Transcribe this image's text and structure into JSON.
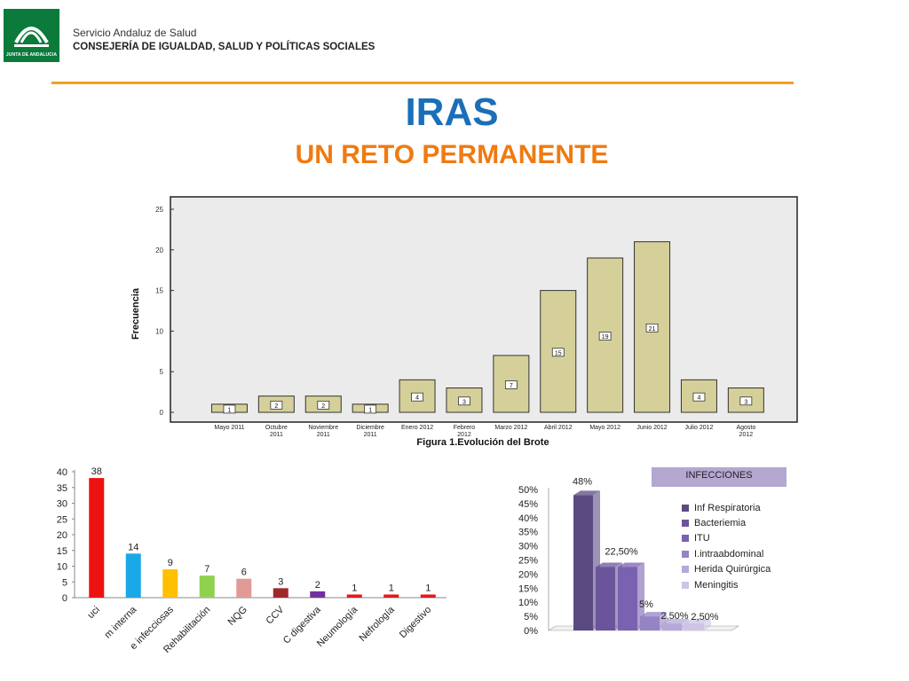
{
  "header": {
    "logo_text": "JUNTA DE ANDALUCIA",
    "org_line1": "Servicio Andaluz de Salud",
    "org_line2": "CONSEJERÍA DE IGUALDAD, SALUD Y POLÍTICAS SOCIALES",
    "title": "IRAS",
    "subtitle": "UN RETO PERMANENTE"
  },
  "colors": {
    "accent_rule": "#f0a020",
    "title": "#1a6fb8",
    "subtitle": "#f07a10",
    "bar_beige": "#d5d09a"
  },
  "chart_data": [
    {
      "type": "bar",
      "title": "Figura 1.Evolución del Brote",
      "ylabel": "Frecuencia",
      "xlabel": "",
      "ylim": [
        0,
        25
      ],
      "yticks": [
        0,
        5,
        10,
        15,
        20,
        25
      ],
      "categories": [
        [
          "Mayo 2011"
        ],
        [
          "Octubre",
          "2011"
        ],
        [
          "Noviembre",
          "2011"
        ],
        [
          "Diciembre",
          "2011"
        ],
        [
          "Enero 2012"
        ],
        [
          "Febrero",
          "2012"
        ],
        [
          "Marzo 2012"
        ],
        [
          "Abril 2012"
        ],
        [
          "Mayo 2012"
        ],
        [
          "Junio 2012"
        ],
        [
          "Julio 2012"
        ],
        [
          "Agosto",
          "2012"
        ]
      ],
      "values": [
        1,
        2,
        2,
        1,
        4,
        3,
        7,
        15,
        19,
        21,
        4,
        3
      ],
      "data_labels": true,
      "grid": false
    },
    {
      "type": "bar",
      "ylim": [
        0,
        40
      ],
      "yticks": [
        0,
        5,
        10,
        15,
        20,
        25,
        30,
        35,
        40
      ],
      "categories": [
        "uci",
        "m interna",
        "e infecciosas",
        "Rehabilitación",
        "NQG",
        "CCV",
        "C digestiva",
        "Neumología",
        "Nefrología",
        "Digestivo"
      ],
      "values": [
        38,
        14,
        9,
        7,
        6,
        3,
        2,
        1,
        1,
        1
      ],
      "colors": [
        "#ee1111",
        "#1aa8e8",
        "#ffc000",
        "#8ed14f",
        "#e29a96",
        "#a0282c",
        "#7030a0",
        "#e41a1c",
        "#e41a1c",
        "#e41a1c"
      ],
      "data_labels": true
    },
    {
      "type": "bar",
      "title": "INFECCIONES",
      "ylim": [
        0,
        50
      ],
      "yticks": [
        "0%",
        "5%",
        "10%",
        "15%",
        "20%",
        "25%",
        "30%",
        "35%",
        "40%",
        "45%",
        "50%"
      ],
      "series": [
        {
          "name": "Inf Respiratoria",
          "value": 48,
          "label": "48%",
          "color": "#5b4a82"
        },
        {
          "name": "Bacteriemia",
          "value": 22.5,
          "label": "22,50%",
          "color": "#6a559a"
        },
        {
          "name": "ITU",
          "value": 22.5,
          "label": "",
          "color": "#7b62b0"
        },
        {
          "name": "I.intraabdominal",
          "value": 5,
          "label": "5%",
          "color": "#9583c6"
        },
        {
          "name": "Herida Quirúrgica",
          "value": 2.5,
          "label": "2,50%",
          "color": "#b5a8da"
        },
        {
          "name": "Meningitis",
          "value": 2.5,
          "label": "2,50%",
          "color": "#cdc4e6"
        }
      ],
      "legend_position": "right"
    }
  ]
}
